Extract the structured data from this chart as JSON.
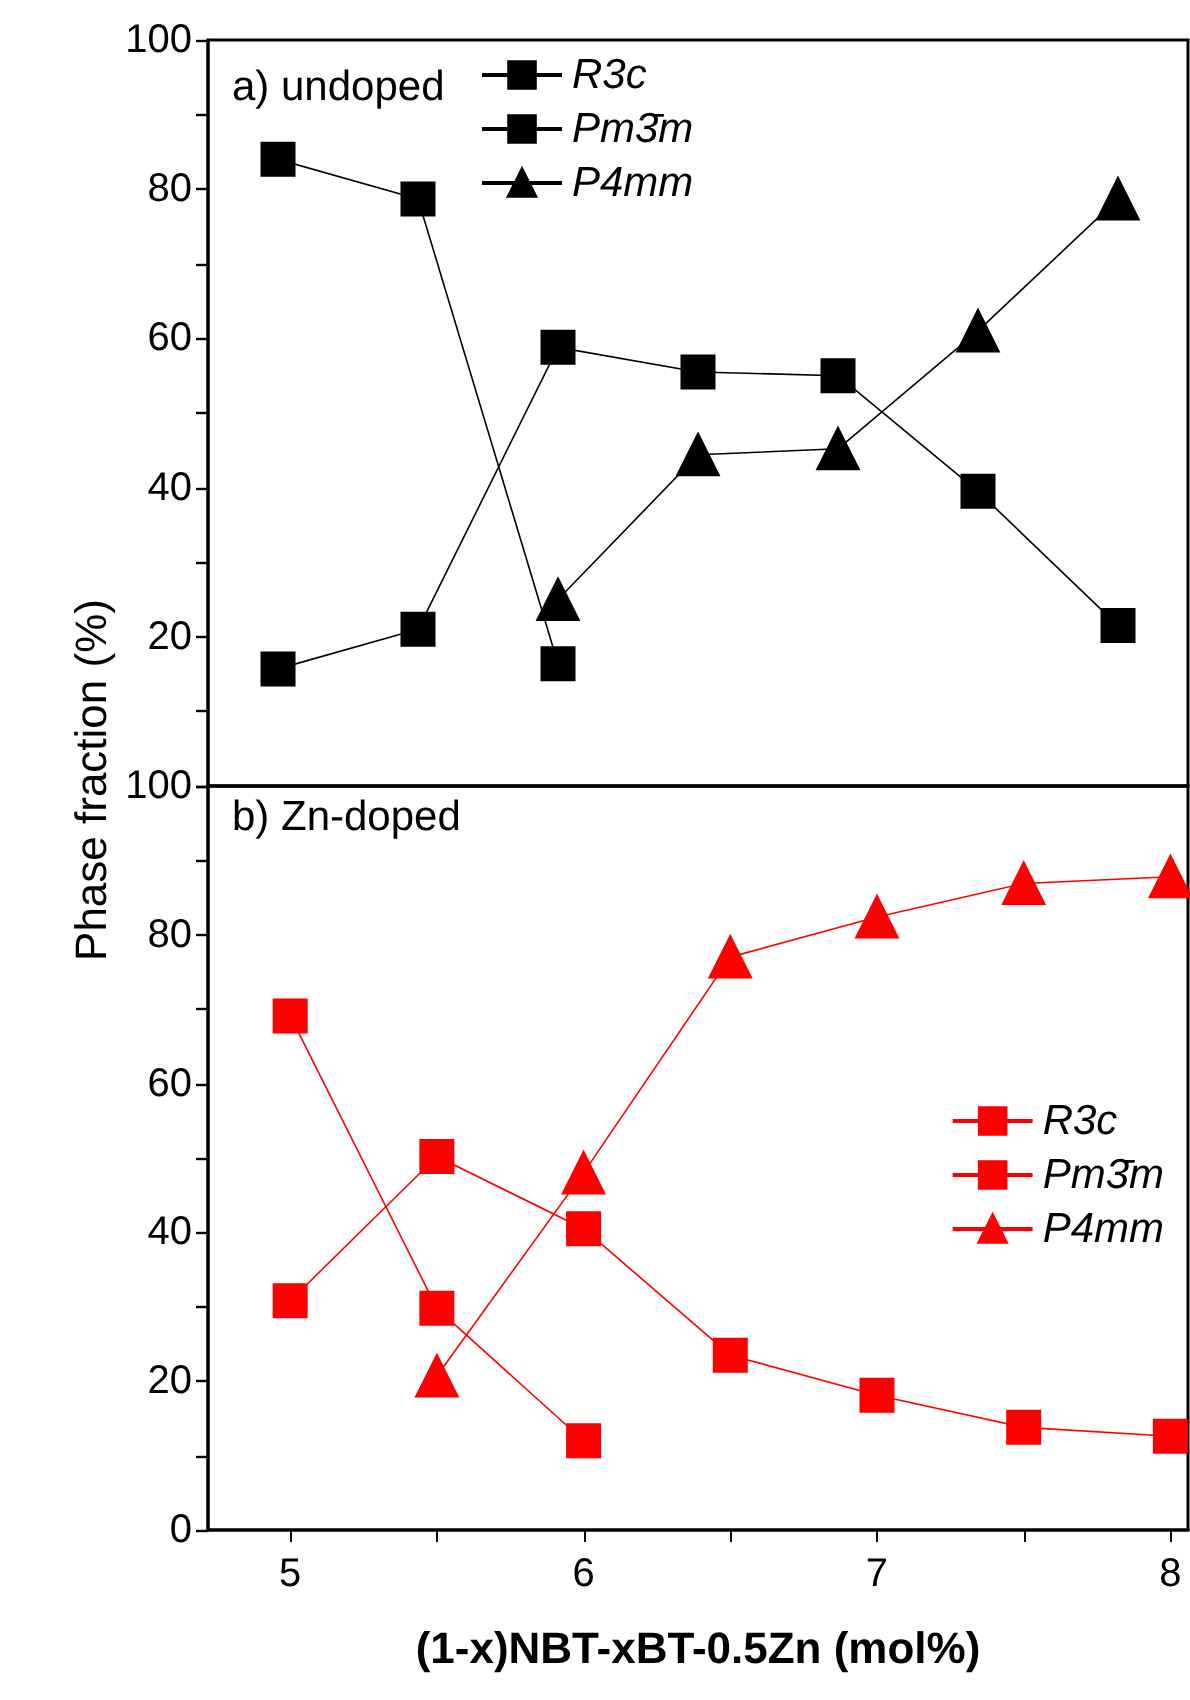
{
  "chart_data": [
    {
      "type": "line",
      "annotations": [
        "a) undoped"
      ],
      "categories": [
        null,
        null,
        null,
        null,
        null,
        null,
        null
      ],
      "ylim": [
        0,
        100
      ],
      "yticks": [
        {
          "value": 0,
          "label": null
        },
        {
          "value": 10,
          "label": null
        },
        20,
        {
          "value": 30,
          "label": null
        },
        40,
        {
          "value": 50,
          "label": null
        },
        60,
        {
          "value": 70,
          "label": null
        },
        80,
        {
          "value": 90,
          "label": null
        },
        100
      ],
      "tick_labels": "y",
      "grid": false,
      "legend": "top",
      "line_style": "solid",
      "series": [
        {
          "name": "R3c",
          "color": "#000000",
          "marker": "square",
          "values": [
            84,
            78.7,
            16.4,
            null,
            null,
            null,
            null
          ]
        },
        {
          "name": "Pm3̄m",
          "color": "#000000",
          "marker": "square",
          "values": [
            15.7,
            21,
            58.8,
            55.5,
            55,
            39.5,
            21.5
          ]
        },
        {
          "name": "P4mm",
          "color": "#000000",
          "marker": "triangle",
          "values": [
            null,
            null,
            25,
            44.4,
            45.2,
            61,
            78.7
          ]
        }
      ]
    },
    {
      "type": "line",
      "annotations": [
        "b) Zn-doped"
      ],
      "xlabel": "(1-x)NBT-xBT-0.5Zn (mol%)",
      "ylabel": "Phase fraction (%)",
      "xlim": [
        4.72,
        8.06
      ],
      "xticks": [
        5,
        {
          "value": 5.5,
          "label": null
        },
        6,
        {
          "value": 6.5,
          "label": null
        },
        7,
        {
          "value": 7.5,
          "label": null
        },
        8
      ],
      "ylim": [
        0,
        100
      ],
      "yticks": [
        0,
        {
          "value": 10,
          "label": null
        },
        20,
        {
          "value": 30,
          "label": null
        },
        40,
        {
          "value": 50,
          "label": null
        },
        60,
        {
          "value": 70,
          "label": null
        },
        80,
        {
          "value": 90,
          "label": null
        },
        100
      ],
      "grid": false,
      "legend": "right",
      "line_style": "solid",
      "series": [
        {
          "name": "R3c",
          "color": "#ff0000",
          "marker": "square",
          "x": [
            5,
            5.5,
            6
          ],
          "values": [
            69.1,
            29.8,
            12
          ]
        },
        {
          "name": "Pm3̄m",
          "color": "#ff0000",
          "marker": "square",
          "x": [
            5,
            5.5,
            6,
            6.5,
            7,
            7.5,
            8
          ],
          "values": [
            30.8,
            50.2,
            40.5,
            23.5,
            18.1,
            13.8,
            12.6
          ]
        },
        {
          "name": "P4mm",
          "color": "#ff0000",
          "marker": "triangle",
          "x": [
            5.5,
            6,
            6.5,
            7,
            7.5,
            8
          ],
          "values": [
            20.7,
            48,
            77,
            82.4,
            86.9,
            87.8
          ]
        }
      ]
    }
  ]
}
